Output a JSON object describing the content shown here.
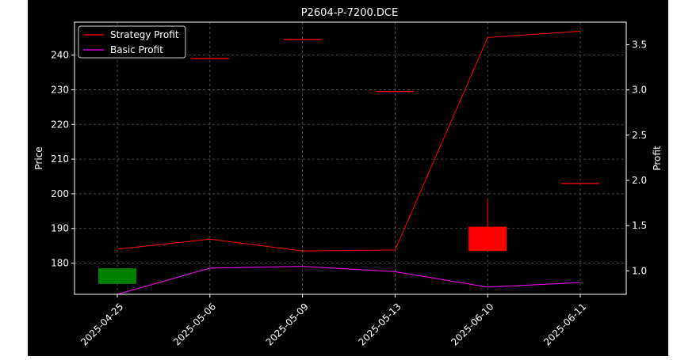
{
  "chart_data": {
    "type": "candlestick+line",
    "title": "P2604-P-7200.DCE",
    "categories": [
      "2025-04-25",
      "2025-05-06",
      "2025-05-09",
      "2025-05-13",
      "2025-06-10",
      "2025-06-11"
    ],
    "price_axis": {
      "label": "Price",
      "ylim": [
        171,
        249.5
      ],
      "ticks": [
        180,
        190,
        200,
        210,
        220,
        230,
        240
      ]
    },
    "profit_axis": {
      "label": "Profit",
      "ylim": [
        0.74,
        3.75
      ],
      "ticks": [
        1.0,
        1.5,
        2.0,
        2.5,
        3.0,
        3.5
      ]
    },
    "candles": [
      {
        "date": "2025-04-25",
        "open": 174.0,
        "close": 178.5,
        "high": 178.5,
        "low": 174.0,
        "color": "#008000"
      },
      {
        "date": "2025-05-06",
        "open": 239.0,
        "close": 239.0,
        "high": 239.0,
        "low": 239.0,
        "color": "#ff0000"
      },
      {
        "date": "2025-05-09",
        "open": 244.5,
        "close": 244.5,
        "high": 244.5,
        "low": 244.5,
        "color": "#ff0000"
      },
      {
        "date": "2025-05-13",
        "open": 229.5,
        "close": 229.5,
        "high": 229.5,
        "low": 229.5,
        "color": "#ff0000"
      },
      {
        "date": "2025-06-10",
        "open": 190.5,
        "close": 183.5,
        "high": 198.5,
        "low": 183.5,
        "color": "#ff0000"
      },
      {
        "date": "2025-06-11",
        "open": 203.0,
        "close": 203.0,
        "high": 203.0,
        "low": 203.0,
        "color": "#ff0000"
      }
    ],
    "series": [
      {
        "name": "Strategy Profit",
        "axis": "profit",
        "color": "#ff0000",
        "values": [
          1.24,
          1.35,
          1.22,
          1.23,
          3.58,
          3.65
        ]
      },
      {
        "name": "Basic Profit",
        "axis": "profit",
        "color": "#ff00ff",
        "values": [
          0.74,
          1.03,
          1.05,
          0.99,
          0.82,
          0.87
        ]
      }
    ],
    "grid": true,
    "legend_position": "top-left"
  }
}
